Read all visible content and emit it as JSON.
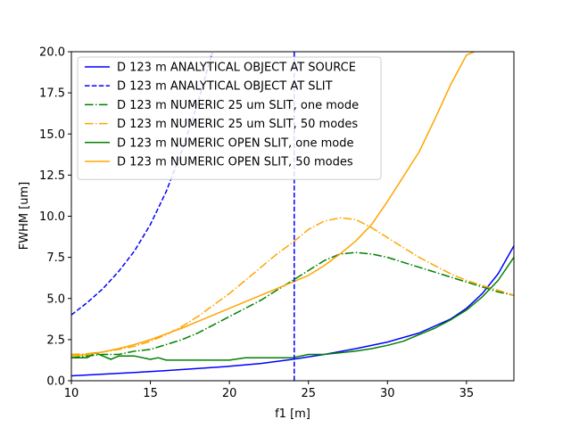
{
  "chart_data": {
    "type": "line",
    "xlabel": "f1 [m]",
    "ylabel": "FWHM [um]",
    "xlim": [
      10,
      38
    ],
    "ylim": [
      0,
      20
    ],
    "xticks": [
      10,
      15,
      20,
      25,
      30,
      35
    ],
    "xtick_labels": [
      "10",
      "15",
      "20",
      "25",
      "30",
      "35"
    ],
    "yticks": [
      0,
      2.5,
      5,
      7.5,
      10,
      12.5,
      15,
      17.5,
      20
    ],
    "ytick_labels": [
      "0.0",
      "2.5",
      "5.0",
      "7.5",
      "10.0",
      "12.5",
      "15.0",
      "17.5",
      "20.0"
    ],
    "grid": false,
    "legend_position": "upper-left",
    "vline": {
      "x": 24.1,
      "color": "#0000ff",
      "dash": "dashed"
    },
    "series": [
      {
        "name": "D 123 m ANALYTICAL OBJECT AT SOURCE",
        "color": "#0000ff",
        "dash": "solid",
        "x": [
          10,
          12,
          14,
          16,
          18,
          20,
          22,
          24,
          26,
          28,
          30,
          32,
          34,
          35,
          36,
          37,
          38
        ],
        "y": [
          0.3,
          0.4,
          0.5,
          0.62,
          0.74,
          0.88,
          1.05,
          1.3,
          1.6,
          1.95,
          2.35,
          2.9,
          3.75,
          4.4,
          5.3,
          6.5,
          8.2
        ]
      },
      {
        "name": "D 123 m ANALYTICAL OBJECT AT SLIT",
        "color": "#0000ff",
        "dash": "dashed",
        "x": [
          10,
          11,
          12,
          13,
          14,
          15,
          16,
          17,
          18,
          18.9
        ],
        "y": [
          4.0,
          4.75,
          5.6,
          6.65,
          7.9,
          9.5,
          11.5,
          14.0,
          16.9,
          19.9
        ]
      },
      {
        "name": "D 123 m NUMERIC 25 um SLIT, one mode",
        "color": "#008000",
        "dash": "dashdot",
        "x": [
          10,
          11,
          12,
          13,
          14,
          15,
          16,
          17,
          18,
          19,
          20,
          21,
          22,
          23,
          24,
          25,
          26,
          27,
          28,
          29,
          30,
          31,
          32,
          33,
          34,
          35,
          36,
          37,
          38
        ],
        "y": [
          1.4,
          1.5,
          1.6,
          1.6,
          1.8,
          1.9,
          2.2,
          2.5,
          2.9,
          3.4,
          3.9,
          4.4,
          4.9,
          5.5,
          6.1,
          6.7,
          7.3,
          7.7,
          7.8,
          7.7,
          7.5,
          7.2,
          6.9,
          6.6,
          6.3,
          6.0,
          5.7,
          5.4,
          5.2
        ]
      },
      {
        "name": "D 123 m NUMERIC 25 um SLIT, 50 modes",
        "color": "#ffa500",
        "dash": "dashdot",
        "x": [
          10,
          11,
          12,
          13,
          14,
          15,
          16,
          17,
          18,
          19,
          20,
          21,
          22,
          23,
          24,
          25,
          26,
          27,
          28,
          29,
          30,
          31,
          32,
          33,
          34,
          35,
          36,
          37,
          38
        ],
        "y": [
          1.6,
          1.65,
          1.75,
          1.9,
          2.1,
          2.4,
          2.8,
          3.3,
          3.9,
          4.6,
          5.3,
          6.1,
          6.9,
          7.7,
          8.4,
          9.2,
          9.7,
          9.9,
          9.8,
          9.3,
          8.7,
          8.1,
          7.5,
          7.0,
          6.5,
          6.1,
          5.8,
          5.5,
          5.2
        ]
      },
      {
        "name": "D 123 m NUMERIC OPEN SLIT, one mode",
        "color": "#008000",
        "dash": "solid",
        "x": [
          10,
          11,
          11.5,
          12,
          12.5,
          13,
          14,
          15,
          15.5,
          16,
          17,
          18,
          19,
          20,
          21,
          22,
          23,
          24,
          25,
          26,
          27,
          28,
          29,
          30,
          31,
          32,
          33,
          34,
          35,
          36,
          37,
          38
        ],
        "y": [
          1.4,
          1.4,
          1.7,
          1.5,
          1.3,
          1.5,
          1.5,
          1.3,
          1.4,
          1.25,
          1.25,
          1.25,
          1.25,
          1.25,
          1.4,
          1.4,
          1.4,
          1.4,
          1.6,
          1.6,
          1.7,
          1.8,
          1.95,
          2.15,
          2.4,
          2.8,
          3.2,
          3.7,
          4.3,
          5.1,
          6.1,
          7.5
        ]
      },
      {
        "name": "D 123 m NUMERIC OPEN SLIT, 50 modes",
        "color": "#ffa500",
        "dash": "solid",
        "x": [
          10,
          11,
          12,
          13,
          14,
          15,
          16,
          17,
          18,
          19,
          20,
          21,
          22,
          23,
          24,
          25,
          26,
          27,
          28,
          29,
          30,
          31,
          32,
          33,
          34,
          35,
          35.5
        ],
        "y": [
          1.5,
          1.6,
          1.75,
          1.95,
          2.2,
          2.5,
          2.85,
          3.2,
          3.6,
          4.0,
          4.4,
          4.8,
          5.2,
          5.6,
          6.0,
          6.4,
          7.0,
          7.7,
          8.5,
          9.5,
          10.9,
          12.4,
          13.9,
          15.9,
          18.0,
          19.8,
          20.0
        ]
      }
    ]
  }
}
